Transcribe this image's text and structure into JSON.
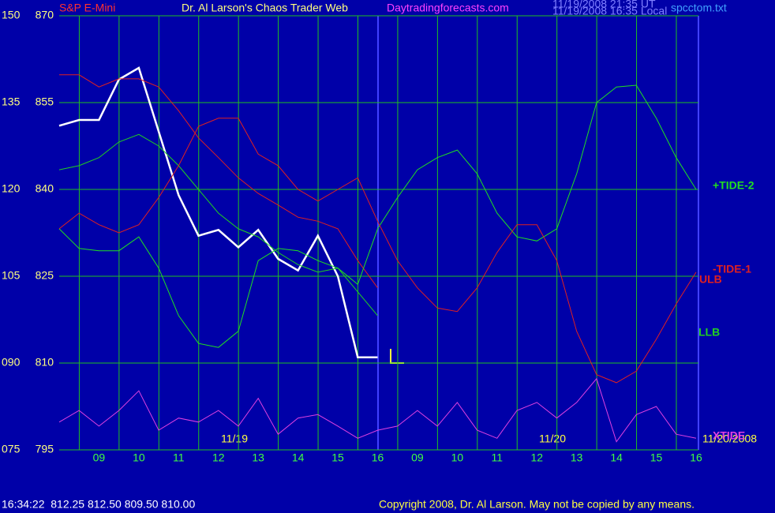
{
  "chart_data": {
    "type": "line",
    "title": "Dr. Al Larson's Chaos Trader Web",
    "symbol": "S&P E-Mini",
    "site": "Daytradingforecasts.com",
    "timestamp_ut": "11/19/2008 21:35 UT",
    "timestamp_local": "11/19/2008 16:35 Local",
    "file": "spcctom.txt",
    "day_labels": [
      "11/19",
      "11/20",
      "11/20/2008"
    ],
    "status": "16:34:22  812.25 812.50 809.50 810.00",
    "copyright": "Copyright 2008, Dr. Al Larson. May not be copied by any means.",
    "x": [
      0,
      0.5,
      1,
      1.5,
      2,
      2.5,
      3,
      3.5,
      4,
      4.5,
      5,
      5.5,
      6,
      6.5,
      7,
      7.5,
      8,
      8.5,
      9,
      9.5,
      10,
      10.5,
      11,
      11.5,
      12,
      12.5,
      13,
      13.5,
      14,
      14.5,
      15,
      15.5,
      16
    ],
    "xlim": [
      0,
      16
    ],
    "xticks": [
      {
        "value": 1,
        "label": "09"
      },
      {
        "value": 2,
        "label": "10"
      },
      {
        "value": 3,
        "label": "11"
      },
      {
        "value": 4,
        "label": "12"
      },
      {
        "value": 5,
        "label": "13"
      },
      {
        "value": 6,
        "label": "14"
      },
      {
        "value": 7,
        "label": "15"
      },
      {
        "value": 8,
        "label": "16"
      },
      {
        "value": 9,
        "label": "09"
      },
      {
        "value": 10,
        "label": "10"
      },
      {
        "value": 11,
        "label": "11"
      },
      {
        "value": 12,
        "label": "12"
      },
      {
        "value": 13,
        "label": "13"
      },
      {
        "value": 14,
        "label": "14"
      },
      {
        "value": 15,
        "label": "15"
      },
      {
        "value": 16,
        "label": "16"
      }
    ],
    "ylim": [
      795,
      870
    ],
    "yticks": [
      870,
      855,
      840,
      825,
      810,
      795
    ],
    "y2lim": [
      75,
      150
    ],
    "y2ticks": [
      150,
      135,
      120,
      105,
      {
        "value": 90,
        "label": "090"
      },
      {
        "value": 75,
        "label": "075"
      }
    ],
    "grid": true,
    "series": [
      {
        "color": "#ffffff",
        "values": [
          851,
          852,
          852,
          859,
          861,
          850,
          839,
          832,
          833,
          830,
          833,
          828,
          826,
          832,
          825,
          811,
          811,
          null,
          null,
          null,
          null,
          null,
          null,
          null,
          null,
          null,
          null,
          null,
          null,
          null,
          null,
          null,
          null
        ]
      },
      {
        "name": "ULB",
        "color": "#e02020",
        "values": [
          859.8,
          859.8,
          857.7,
          859.1,
          859.1,
          857.7,
          853.6,
          848.9,
          845.5,
          842,
          839.3,
          837.3,
          835.2,
          834.5,
          833.2,
          827.7,
          823,
          null,
          null,
          null,
          null,
          null,
          null,
          null,
          null,
          null,
          null,
          null,
          null,
          null,
          null,
          null,
          null
        ]
      },
      {
        "name": "LLB",
        "color": "#20d020",
        "values": [
          843.4,
          844.1,
          845.5,
          848.2,
          849.5,
          847.5,
          844.1,
          840,
          835.9,
          833.2,
          831.8,
          829.1,
          827,
          825.7,
          826.4,
          822.3,
          818.2,
          null,
          null,
          null,
          null,
          null,
          null,
          null,
          null,
          null,
          null,
          null,
          null,
          null,
          null,
          null,
          null
        ]
      },
      {
        "name": "+TIDE-2",
        "color": "#20e020",
        "values": [
          833.2,
          829.8,
          829.4,
          829.4,
          831.8,
          826.4,
          818.2,
          813.4,
          812.7,
          815.5,
          827.7,
          829.8,
          829.4,
          827.7,
          826.4,
          823.6,
          833.2,
          838.6,
          843.4,
          845.5,
          846.8,
          842.7,
          835.9,
          831.8,
          831.1,
          833.2,
          842.7,
          855,
          857.7,
          858,
          852.3,
          845.5,
          840
        ]
      },
      {
        "name": "-TIDE-1",
        "color": "#e02020",
        "values": [
          833.2,
          835.9,
          833.9,
          832.5,
          833.9,
          838.6,
          844.1,
          850.9,
          852.3,
          852.3,
          846.1,
          844.1,
          840,
          838,
          840,
          842,
          834.5,
          827.7,
          823,
          819.5,
          818.9,
          823,
          829.1,
          833.9,
          833.9,
          827.7,
          815.5,
          808,
          806.6,
          808.6,
          814.1,
          820.2,
          825.7
        ]
      },
      {
        "name": "XTIDE",
        "color": "#e040e0",
        "values": [
          799.8,
          801.8,
          799.1,
          801.8,
          805.2,
          798.4,
          800.5,
          799.8,
          801.8,
          799.1,
          803.9,
          797.7,
          800.5,
          801.1,
          799.1,
          797,
          798.4,
          799.1,
          801.8,
          799.1,
          803.2,
          798.4,
          797,
          801.8,
          803.2,
          800.5,
          803.2,
          807.3,
          796.4,
          801.1,
          802.5,
          797.7,
          797
        ]
      }
    ]
  }
}
